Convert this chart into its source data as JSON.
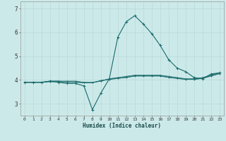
{
  "xlabel": "Humidex (Indice chaleur)",
  "xlim": [
    -0.5,
    23.5
  ],
  "ylim": [
    2.5,
    7.3
  ],
  "yticks": [
    3,
    4,
    5,
    6,
    7
  ],
  "xticks": [
    0,
    1,
    2,
    3,
    4,
    5,
    6,
    7,
    8,
    9,
    10,
    11,
    12,
    13,
    14,
    15,
    16,
    17,
    18,
    19,
    20,
    21,
    22,
    23
  ],
  "background_color": "#cce9e9",
  "grid_color": "#b8d8d8",
  "line_color": "#1a6b6b",
  "series": [
    [
      3.9,
      3.9,
      3.9,
      3.95,
      3.9,
      3.85,
      3.85,
      3.75,
      2.75,
      3.45,
      4.05,
      5.8,
      6.45,
      6.7,
      6.35,
      5.95,
      5.45,
      4.85,
      4.5,
      4.35,
      4.1,
      4.05,
      4.25,
      4.3
    ],
    [
      3.9,
      3.9,
      3.9,
      3.95,
      3.95,
      3.95,
      3.95,
      3.9,
      3.9,
      3.95,
      4.05,
      4.1,
      4.15,
      4.2,
      4.2,
      4.2,
      4.2,
      4.15,
      4.1,
      4.05,
      4.05,
      4.1,
      4.2,
      4.3
    ],
    [
      3.9,
      3.9,
      3.9,
      3.95,
      3.95,
      3.9,
      3.9,
      3.88,
      3.88,
      3.98,
      4.03,
      4.08,
      4.12,
      4.18,
      4.18,
      4.18,
      4.18,
      4.13,
      4.08,
      4.03,
      4.03,
      4.08,
      4.18,
      4.28
    ],
    [
      3.9,
      3.9,
      3.9,
      3.92,
      3.92,
      3.92,
      3.92,
      3.88,
      3.88,
      3.96,
      4.02,
      4.06,
      4.1,
      4.16,
      4.16,
      4.16,
      4.16,
      4.1,
      4.06,
      4.02,
      4.02,
      4.06,
      4.16,
      4.26
    ]
  ]
}
